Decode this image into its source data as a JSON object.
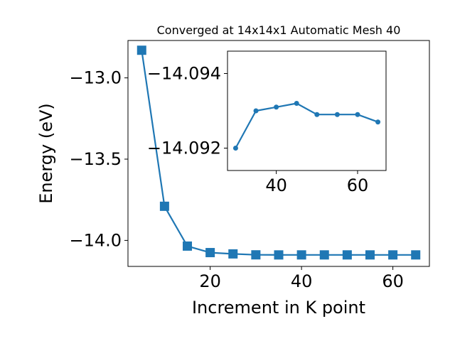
{
  "chart_data": [
    {
      "type": "line",
      "title": "Converged at 14x14x1 Automatic Mesh 40",
      "xlabel": "Increment in K point",
      "ylabel": "Energy (eV)",
      "xlim": [
        2,
        68
      ],
      "ylim": [
        -14.16,
        -12.77
      ],
      "xticks": [
        20,
        40,
        60
      ],
      "xtick_labels": [
        "20",
        "40",
        "60"
      ],
      "yticks": [
        -14.0,
        -13.5,
        -13.0
      ],
      "ytick_labels": [
        "−14.0",
        "−13.5",
        "−13.0"
      ],
      "grid": false,
      "legend": "none",
      "marker": "square",
      "color": "#1f77b4",
      "series": [
        {
          "x": [
            5,
            10,
            15,
            20,
            25,
            30,
            35,
            40,
            45,
            50,
            55,
            60,
            65
          ],
          "y": [
            -12.83,
            -13.79,
            -14.035,
            -14.075,
            -14.083,
            -14.0888,
            -14.0893,
            -14.0892,
            -14.0892,
            -14.0892,
            -14.0892,
            -14.0892,
            -14.0892
          ]
        }
      ]
    },
    {
      "type": "line",
      "title": "",
      "xlabel": "",
      "ylabel": "",
      "placement": "inset",
      "xlim": [
        28,
        67
      ],
      "ylim": [
        -14.0914,
        -14.0946
      ],
      "xticks": [
        40,
        60
      ],
      "xtick_labels": [
        "40",
        "60"
      ],
      "yticks": [
        -14.092,
        -14.094
      ],
      "ytick_labels": [
        "−14.092",
        "−14.094"
      ],
      "grid": false,
      "legend": "none",
      "marker": "circle",
      "color": "#1f77b4",
      "series": [
        {
          "x": [
            30,
            35,
            40,
            45,
            50,
            55,
            60,
            65
          ],
          "y": [
            -14.092,
            -14.093,
            -14.0931,
            -14.0932,
            -14.0929,
            -14.0929,
            -14.0929,
            -14.0927
          ]
        }
      ]
    }
  ]
}
